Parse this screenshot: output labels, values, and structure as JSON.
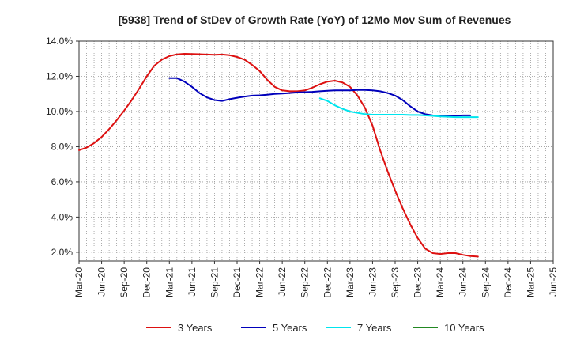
{
  "chart_data": {
    "type": "line",
    "title": "[5938]  Trend of StDev of Growth Rate (YoY) of 12Mo Mov Sum of Revenues",
    "xlabel": "",
    "ylabel": "",
    "ylim": [
      1.5,
      14.0
    ],
    "y_ticks": [
      2.0,
      4.0,
      6.0,
      8.0,
      10.0,
      12.0,
      14.0
    ],
    "y_tick_labels": [
      "2.0%",
      "4.0%",
      "6.0%",
      "8.0%",
      "10.0%",
      "12.0%",
      "14.0%"
    ],
    "x_tick_labels": [
      "Mar-20",
      "Jun-20",
      "Sep-20",
      "Dec-20",
      "Mar-21",
      "Jun-21",
      "Sep-21",
      "Dec-21",
      "Mar-22",
      "Jun-22",
      "Sep-22",
      "Dec-22",
      "Mar-23",
      "Jun-23",
      "Sep-23",
      "Dec-23",
      "Mar-24",
      "Jun-24",
      "Sep-24",
      "Dec-24",
      "Mar-25",
      "Jun-25"
    ],
    "grid": true,
    "legend_position": "bottom",
    "series": [
      {
        "name": "3 Years",
        "color": "#dd1111",
        "start_index": 0,
        "values": [
          7.8,
          7.95,
          8.2,
          8.55,
          9.0,
          9.5,
          10.05,
          10.65,
          11.3,
          12.0,
          12.6,
          12.95,
          13.15,
          13.25,
          13.28,
          13.27,
          13.26,
          13.24,
          13.22,
          13.24,
          13.2,
          13.1,
          12.95,
          12.65,
          12.3,
          11.8,
          11.4,
          11.2,
          11.15,
          11.15,
          11.2,
          11.35,
          11.55,
          11.7,
          11.75,
          11.65,
          11.4,
          10.9,
          10.2,
          9.2,
          7.8,
          6.6,
          5.5,
          4.5,
          3.6,
          2.8,
          2.2,
          1.95,
          1.9,
          1.95,
          1.95,
          1.85,
          1.78,
          1.75
        ]
      },
      {
        "name": "5 Years",
        "color": "#0000bb",
        "start_index": 12,
        "values": [
          11.9,
          11.9,
          11.7,
          11.4,
          11.05,
          10.8,
          10.65,
          10.6,
          10.7,
          10.78,
          10.85,
          10.9,
          10.92,
          10.95,
          11.0,
          11.02,
          11.05,
          11.08,
          11.1,
          11.12,
          11.15,
          11.18,
          11.2,
          11.2,
          11.2,
          11.22,
          11.22,
          11.2,
          11.15,
          11.05,
          10.9,
          10.65,
          10.3,
          10.0,
          9.85,
          9.78,
          9.75,
          9.75,
          9.76,
          9.78,
          9.78
        ]
      },
      {
        "name": "7 Years",
        "color": "#00e5ee",
        "start_index": 32,
        "values": [
          10.75,
          10.6,
          10.35,
          10.15,
          10.0,
          9.92,
          9.85,
          9.82,
          9.82,
          9.82,
          9.82,
          9.82,
          9.8,
          9.8,
          9.78,
          9.75,
          9.72,
          9.7,
          9.68,
          9.68,
          9.68,
          9.68
        ]
      },
      {
        "name": "10 Years",
        "color": "#228822",
        "start_index": 0,
        "values": []
      }
    ]
  }
}
